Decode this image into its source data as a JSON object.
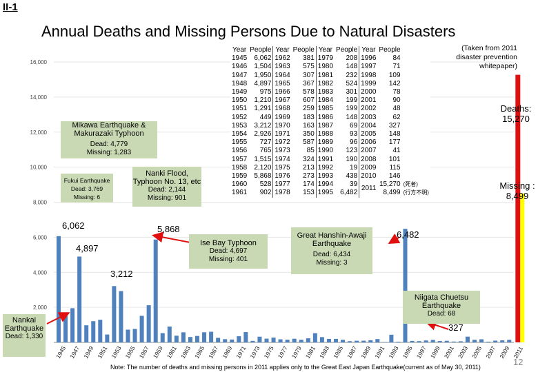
{
  "header": {
    "corner_label": "II-1",
    "title": "Annual Deaths and Missing Persons Due to Natural Disasters"
  },
  "chart_data": {
    "type": "bar",
    "title": "Annual Deaths and Missing Persons Due to Natural Disasters",
    "ylim": [
      0,
      16000
    ],
    "y_ticks": [
      "2,000",
      "4,000",
      "6,000",
      "8,000",
      "10,000",
      "12,000",
      "14,000",
      "16,000"
    ],
    "y_tick_values": [
      2000,
      4000,
      6000,
      8000,
      10000,
      12000,
      14000,
      16000
    ],
    "x_ticks": [
      "1945",
      "1947",
      "1949",
      "1951",
      "1953",
      "1955",
      "1957",
      "1959",
      "1961",
      "1963",
      "1965",
      "1967",
      "1969",
      "1971",
      "1973",
      "1975",
      "1977",
      "1979",
      "1981",
      "1983",
      "1985",
      "1987",
      "1989",
      "1991",
      "1993",
      "1995",
      "1997",
      "1999",
      "2001",
      "2003",
      "2005",
      "2007",
      "2009",
      "2011"
    ],
    "years": [
      1945,
      1946,
      1947,
      1948,
      1949,
      1950,
      1951,
      1952,
      1953,
      1954,
      1955,
      1956,
      1957,
      1958,
      1959,
      1960,
      1961,
      1962,
      1963,
      1964,
      1965,
      1966,
      1967,
      1968,
      1969,
      1970,
      1971,
      1972,
      1973,
      1974,
      1975,
      1976,
      1977,
      1978,
      1979,
      1980,
      1981,
      1982,
      1983,
      1984,
      1985,
      1986,
      1987,
      1988,
      1989,
      1990,
      1991,
      1992,
      1993,
      1994,
      1995,
      1996,
      1997,
      1998,
      1999,
      2000,
      2001,
      2002,
      2003,
      2004,
      2005,
      2006,
      2007,
      2008,
      2009,
      2010
    ],
    "values": [
      6062,
      1504,
      1950,
      4897,
      975,
      1210,
      1291,
      449,
      3212,
      2926,
      727,
      765,
      1515,
      2120,
      5868,
      528,
      902,
      381,
      575,
      307,
      367,
      578,
      607,
      259,
      183,
      163,
      350,
      587,
      85,
      324,
      213,
      273,
      174,
      153,
      208,
      148,
      232,
      524,
      301,
      199,
      199,
      148,
      69,
      93,
      96,
      123,
      190,
      19,
      438,
      39,
      6482,
      84,
      71,
      109,
      142,
      78,
      90,
      48,
      62,
      327,
      148,
      177,
      41,
      101,
      115,
      146
    ],
    "stacked_2011": {
      "year": 2011,
      "deaths": 15270,
      "missing": 8499,
      "deaths_color": "#e01010",
      "missing_color": "#ffff00"
    },
    "bar_color": "#4f81bd"
  },
  "table": {
    "headers": [
      "Year",
      "People",
      "Year",
      "People",
      "Year",
      "People",
      "Year",
      "People"
    ],
    "rows": [
      [
        "1945",
        "6,062",
        "1962",
        "381",
        "1979",
        "208",
        "1996",
        "84"
      ],
      [
        "1946",
        "1,504",
        "1963",
        "575",
        "1980",
        "148",
        "1997",
        "71"
      ],
      [
        "1947",
        "1,950",
        "1964",
        "307",
        "1981",
        "232",
        "1998",
        "109"
      ],
      [
        "1948",
        "4,897",
        "1965",
        "367",
        "1982",
        "524",
        "1999",
        "142"
      ],
      [
        "1949",
        "975",
        "1966",
        "578",
        "1983",
        "301",
        "2000",
        "78"
      ],
      [
        "1950",
        "1,210",
        "1967",
        "607",
        "1984",
        "199",
        "2001",
        "90"
      ],
      [
        "1951",
        "1,291",
        "1968",
        "259",
        "1985",
        "199",
        "2002",
        "48"
      ],
      [
        "1952",
        "449",
        "1969",
        "183",
        "1986",
        "148",
        "2003",
        "62"
      ],
      [
        "1953",
        "3,212",
        "1970",
        "163",
        "1987",
        "69",
        "2004",
        "327"
      ],
      [
        "1954",
        "2,926",
        "1971",
        "350",
        "1988",
        "93",
        "2005",
        "148"
      ],
      [
        "1955",
        "727",
        "1972",
        "587",
        "1989",
        "96",
        "2006",
        "177"
      ],
      [
        "1956",
        "765",
        "1973",
        "85",
        "1990",
        "123",
        "2007",
        "41"
      ],
      [
        "1957",
        "1,515",
        "1974",
        "324",
        "1991",
        "190",
        "2008",
        "101"
      ],
      [
        "1958",
        "2,120",
        "1975",
        "213",
        "1992",
        "19",
        "2009",
        "115"
      ],
      [
        "1959",
        "5,868",
        "1976",
        "273",
        "1993",
        "438",
        "2010",
        "146"
      ],
      [
        "1960",
        "528",
        "1977",
        "174",
        "1994",
        "39"
      ],
      [
        "1961",
        "902",
        "1978",
        "153",
        "1995",
        "6,482"
      ]
    ],
    "y2011": "2011",
    "v2011_deaths": "15,270",
    "v2011_missing": "8,499",
    "tag_deaths": "(死者)",
    "tag_missing": "(行方不明)"
  },
  "side_note": "(Taken from 2011 disaster prevention whitepaper)",
  "deaths_label": "Deaths: 15,270",
  "missing_label": "Missing : 8,499",
  "annotations": {
    "mikawa": {
      "title": "Mikawa Earthquake & Makurazaki Typhoon",
      "dead": "Dead: 4,779",
      "missing": "Missing: 1,283"
    },
    "fukui": {
      "title": "Fukui Earthquake",
      "dead": "Dead: 3,769",
      "missing": "Missing: 6"
    },
    "nanki": {
      "title": "Nanki Flood, Typhoon No. 13, etc",
      "dead": "Dead: 2,144",
      "missing": "Missing: 901"
    },
    "isebay": {
      "title": "Ise Bay Typhoon",
      "dead": "Dead: 4,697",
      "missing": "Missing: 401"
    },
    "hanshin": {
      "title": "Great Hanshin-Awaji Earthquake",
      "dead": "Dead: 6,434",
      "missing": "Missing: 3"
    },
    "niigata": {
      "title": "Niigata Chuetsu Earthquake",
      "dead": "Dead: 68"
    },
    "nankai": {
      "title": "Nankai Earthquake",
      "dead": "Dead: 1,330"
    }
  },
  "value_labels": {
    "v6062": "6,062",
    "v4897": "4,897",
    "v3212": "3,212",
    "v5868": "5,868",
    "v6482": "6,482",
    "v327": "327"
  },
  "note": "Note: The number of deaths and missing persons in 2011 applies only to the Great East Japan Earthquake(current as of May 30, 2011)",
  "page_number": "12"
}
